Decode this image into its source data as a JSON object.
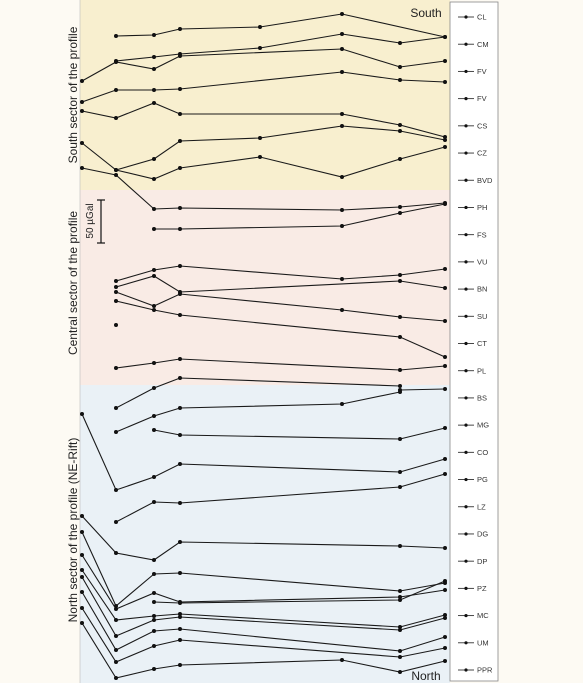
{
  "chart_data": {
    "type": "line",
    "title": "",
    "xlabel": "",
    "ylabel": "",
    "scale_bar_label": "50 µGal",
    "end_labels": {
      "top": "South",
      "bottom": "North"
    },
    "sectors": [
      {
        "name": "South sector of the profile",
        "color": "#f8efcf"
      },
      {
        "name": "Central sector of the profile",
        "color": "#f9ebe5"
      },
      {
        "name": "North sector of the profile (NE-Rift)",
        "color": "#eaf1f6"
      }
    ],
    "stations": [
      "CL",
      "CM",
      "FV",
      "FV",
      "CS",
      "CZ",
      "BVD",
      "PH",
      "FS",
      "VU",
      "BN",
      "SU",
      "CT",
      "PL",
      "BS",
      "MG",
      "CO",
      "PG",
      "LZ",
      "DG",
      "DP",
      "PZ",
      "MC",
      "UM",
      "PPR"
    ],
    "series": [
      {
        "values": [
          null,
          36,
          35,
          29,
          27,
          14,
          null,
          37
        ]
      },
      {
        "values": [
          null,
          61,
          57,
          54,
          48,
          34,
          43,
          37
        ]
      },
      {
        "values": [
          81,
          62,
          69,
          56,
          null,
          49,
          67,
          61
        ]
      },
      {
        "values": [
          102,
          90,
          90,
          89,
          null,
          72,
          80,
          82
        ]
      },
      {
        "values": [
          111,
          118,
          103,
          114,
          null,
          114,
          125,
          137
        ]
      },
      {
        "values": [
          null,
          170,
          159,
          141,
          138,
          126,
          131,
          140
        ]
      },
      {
        "values": [
          143,
          170,
          179,
          168,
          157,
          177,
          159,
          147
        ]
      },
      {
        "values": [
          168,
          175,
          209,
          208,
          null,
          210,
          207,
          203
        ]
      },
      {
        "values": [
          null,
          null,
          229,
          229,
          null,
          226,
          213,
          204
        ]
      },
      {
        "values": [
          null,
          281,
          270,
          266,
          null,
          279,
          275,
          269
        ]
      },
      {
        "values": [
          null,
          287,
          276,
          292,
          null,
          null,
          281,
          288
        ]
      },
      {
        "values": [
          null,
          292,
          306,
          294,
          null,
          310,
          317,
          321
        ]
      },
      {
        "values": [
          null,
          301,
          310,
          315,
          null,
          null,
          337,
          357
        ]
      },
      {
        "values": [
          null,
          325,
          null,
          null,
          null,
          null,
          null,
          null
        ]
      },
      {
        "values": [
          null,
          368,
          363,
          359,
          null,
          null,
          370,
          366
        ]
      },
      {
        "values": [
          null,
          408,
          388,
          378,
          null,
          null,
          386,
          null
        ]
      },
      {
        "values": [
          null,
          null,
          null,
          null,
          null,
          null,
          390,
          389
        ]
      },
      {
        "values": [
          null,
          432,
          416,
          408,
          null,
          404,
          392,
          null
        ]
      },
      {
        "values": [
          null,
          null,
          430,
          435,
          null,
          null,
          439,
          428
        ]
      },
      {
        "values": [
          414,
          490,
          477,
          464,
          null,
          null,
          472,
          459
        ]
      },
      {
        "values": [
          null,
          522,
          502,
          503,
          null,
          null,
          487,
          474
        ]
      },
      {
        "values": [
          516,
          553,
          560,
          542,
          null,
          null,
          546,
          548
        ]
      },
      {
        "values": [
          532,
          606,
          574,
          573,
          null,
          null,
          591,
          583
        ]
      },
      {
        "values": [
          555,
          609,
          593,
          602,
          null,
          null,
          597,
          590
        ]
      },
      {
        "values": [
          null,
          null,
          602,
          603,
          null,
          null,
          600,
          581
        ]
      },
      {
        "values": [
          570,
          620,
          616,
          614,
          null,
          null,
          627,
          615
        ]
      },
      {
        "values": [
          577,
          636,
          620,
          617,
          null,
          null,
          630,
          618
        ]
      },
      {
        "values": [
          592,
          650,
          631,
          629,
          null,
          null,
          651,
          637
        ]
      },
      {
        "values": [
          608,
          662,
          646,
          640,
          null,
          null,
          657,
          648
        ]
      },
      {
        "values": [
          623,
          678,
          669,
          665,
          null,
          660,
          672,
          661
        ]
      }
    ]
  }
}
